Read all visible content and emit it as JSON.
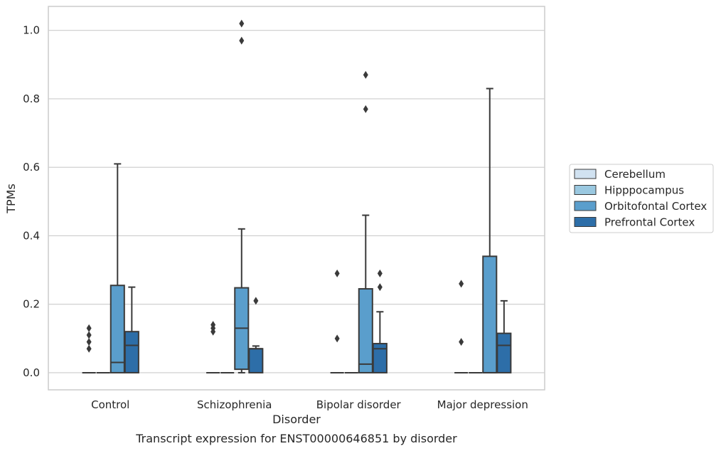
{
  "chart_data": {
    "type": "box",
    "xlabel": "Disorder",
    "ylabel": "TPMs",
    "caption": "Transcript expression for ENST00000646851 by disorder",
    "ylim": [
      -0.05,
      1.07
    ],
    "yticks": [
      0.0,
      0.2,
      0.4,
      0.6,
      0.8,
      1.0
    ],
    "ytick_labels": [
      "0.0",
      "0.2",
      "0.4",
      "0.6",
      "0.8",
      "1.0"
    ],
    "grid": "horizontal",
    "legend_position": "right",
    "categories": [
      "Control",
      "Schizophrenia",
      "Bipolar disorder",
      "Major depression"
    ],
    "series": [
      {
        "name": "Cerebellum",
        "color": "#d1e2f1",
        "boxes": [
          {
            "whislo": 0,
            "q1": 0,
            "med": 0,
            "q3": 0,
            "whishi": 0,
            "fliers": [
              0.07,
              0.09,
              0.11,
              0.13
            ]
          },
          {
            "whislo": 0,
            "q1": 0,
            "med": 0,
            "q3": 0,
            "whishi": 0,
            "fliers": [
              0.12,
              0.13,
              0.14
            ]
          },
          {
            "whislo": 0,
            "q1": 0,
            "med": 0,
            "q3": 0,
            "whishi": 0,
            "fliers": [
              0.1,
              0.29
            ]
          },
          {
            "whislo": 0,
            "q1": 0,
            "med": 0,
            "q3": 0,
            "whishi": 0,
            "fliers": [
              0.09,
              0.26
            ]
          }
        ]
      },
      {
        "name": "Hipppocampus",
        "color": "#9ac8e0",
        "boxes": [
          {
            "whislo": 0,
            "q1": 0,
            "med": 0,
            "q3": 0,
            "whishi": 0,
            "fliers": []
          },
          {
            "whislo": 0,
            "q1": 0,
            "med": 0,
            "q3": 0,
            "whishi": 0,
            "fliers": []
          },
          {
            "whislo": 0,
            "q1": 0,
            "med": 0,
            "q3": 0,
            "whishi": 0,
            "fliers": []
          },
          {
            "whislo": 0,
            "q1": 0,
            "med": 0,
            "q3": 0,
            "whishi": 0,
            "fliers": []
          }
        ]
      },
      {
        "name": "Orbitofontal Cortex",
        "color": "#5a9ecc",
        "boxes": [
          {
            "whislo": 0,
            "q1": 0,
            "med": 0.03,
            "q3": 0.255,
            "whishi": 0.61,
            "fliers": []
          },
          {
            "whislo": 0,
            "q1": 0.01,
            "med": 0.13,
            "q3": 0.248,
            "whishi": 0.42,
            "fliers": [
              0.97,
              1.02
            ]
          },
          {
            "whislo": 0,
            "q1": 0,
            "med": 0.025,
            "q3": 0.245,
            "whishi": 0.46,
            "fliers": [
              0.77,
              0.87
            ]
          },
          {
            "whislo": 0,
            "q1": 0,
            "med": 0,
            "q3": 0.34,
            "whishi": 0.83,
            "fliers": []
          }
        ]
      },
      {
        "name": "Prefrontal Cortex",
        "color": "#2d6ea8",
        "boxes": [
          {
            "whislo": 0,
            "q1": 0,
            "med": 0.08,
            "q3": 0.12,
            "whishi": 0.25,
            "fliers": []
          },
          {
            "whislo": 0,
            "q1": 0,
            "med": 0.07,
            "q3": 0.07,
            "whishi": 0.078,
            "fliers": [
              0.21
            ]
          },
          {
            "whislo": 0,
            "q1": 0,
            "med": 0.07,
            "q3": 0.085,
            "whishi": 0.178,
            "fliers": [
              0.25,
              0.29
            ]
          },
          {
            "whislo": 0,
            "q1": 0,
            "med": 0.08,
            "q3": 0.115,
            "whishi": 0.21,
            "fliers": []
          }
        ]
      }
    ]
  }
}
